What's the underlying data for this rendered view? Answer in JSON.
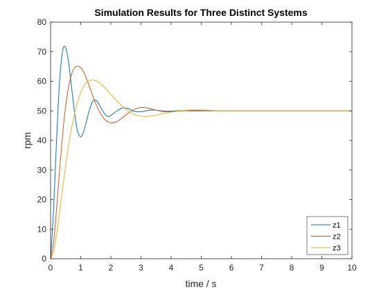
{
  "chart_data": {
    "type": "line",
    "title": "Simulation Results for Three Distinct Systems",
    "xlabel": "time / s",
    "ylabel": "rpm",
    "xlim": [
      0,
      10
    ],
    "ylim": [
      0,
      80
    ],
    "xticks": [
      0,
      1,
      2,
      3,
      4,
      5,
      6,
      7,
      8,
      9,
      10
    ],
    "yticks": [
      0,
      10,
      20,
      30,
      40,
      50,
      60,
      70,
      80
    ],
    "grid": false,
    "legend_location": "bottom-right",
    "series": [
      {
        "name": "z1",
        "color": "#0072BD",
        "x": [
          0,
          0.1,
          0.2,
          0.3,
          0.4,
          0.5,
          0.6,
          0.7,
          0.8,
          0.9,
          1.0,
          1.1,
          1.2,
          1.3,
          1.4,
          1.5,
          1.6,
          1.7,
          1.8,
          1.9,
          2.0,
          2.2,
          2.4,
          2.6,
          2.8,
          3.0,
          3.2,
          3.4,
          3.6,
          3.8,
          4.0,
          4.3,
          4.6,
          5.0,
          6.0,
          7.0,
          8.0,
          9.0,
          10.0
        ],
        "y": [
          0,
          16.7,
          40.5,
          60.2,
          70.3,
          71.4,
          66.3,
          57.7,
          49.0,
          43.0,
          41.3,
          43.0,
          46.8,
          50.7,
          53.2,
          53.6,
          52.4,
          50.5,
          48.9,
          48.1,
          48.4,
          50.0,
          51.0,
          50.7,
          49.8,
          49.7,
          50.1,
          50.3,
          50.1,
          49.9,
          49.9,
          50.1,
          50.0,
          50.0,
          50.0,
          50.0,
          50.0,
          50.0,
          50.0
        ]
      },
      {
        "name": "z2",
        "color": "#D95319",
        "x": [
          0,
          0.1,
          0.2,
          0.3,
          0.4,
          0.5,
          0.6,
          0.7,
          0.8,
          0.9,
          1.0,
          1.1,
          1.2,
          1.3,
          1.4,
          1.5,
          1.6,
          1.7,
          1.8,
          1.9,
          2.0,
          2.2,
          2.4,
          2.6,
          2.8,
          3.0,
          3.2,
          3.4,
          3.6,
          3.8,
          4.0,
          4.4,
          4.8,
          5.2,
          6.0,
          7.0,
          8.0,
          9.0,
          10.0
        ],
        "y": [
          0,
          5.5,
          17.0,
          30.0,
          42.0,
          51.5,
          58.2,
          62.5,
          64.6,
          65.1,
          64.6,
          63.1,
          60.7,
          57.9,
          55.1,
          52.5,
          50.2,
          48.4,
          47.1,
          46.3,
          45.9,
          46.4,
          47.8,
          49.4,
          50.6,
          51.1,
          51.0,
          50.5,
          50.0,
          49.7,
          49.7,
          50.0,
          50.2,
          50.1,
          50.0,
          50.0,
          50.0,
          50.0,
          50.0
        ]
      },
      {
        "name": "z3",
        "color": "#EDB120",
        "x": [
          0,
          0.1,
          0.2,
          0.3,
          0.4,
          0.5,
          0.6,
          0.7,
          0.8,
          0.9,
          1.0,
          1.1,
          1.2,
          1.3,
          1.4,
          1.5,
          1.6,
          1.7,
          1.8,
          1.9,
          2.0,
          2.2,
          2.4,
          2.6,
          2.8,
          3.0,
          3.2,
          3.5,
          3.8,
          4.2,
          4.6,
          5.0,
          5.5,
          6.0,
          7.0,
          8.0,
          9.0,
          10.0
        ],
        "y": [
          0,
          2.5,
          8.3,
          16.0,
          24.0,
          31.5,
          38.4,
          44.3,
          49.2,
          53.2,
          56.2,
          58.3,
          59.6,
          60.2,
          60.4,
          60.2,
          59.6,
          58.8,
          57.8,
          56.7,
          55.6,
          53.4,
          51.4,
          49.8,
          48.7,
          48.2,
          48.1,
          48.5,
          49.2,
          49.9,
          50.3,
          50.3,
          50.1,
          50.0,
          50.0,
          50.0,
          50.0,
          50.0
        ]
      }
    ]
  }
}
